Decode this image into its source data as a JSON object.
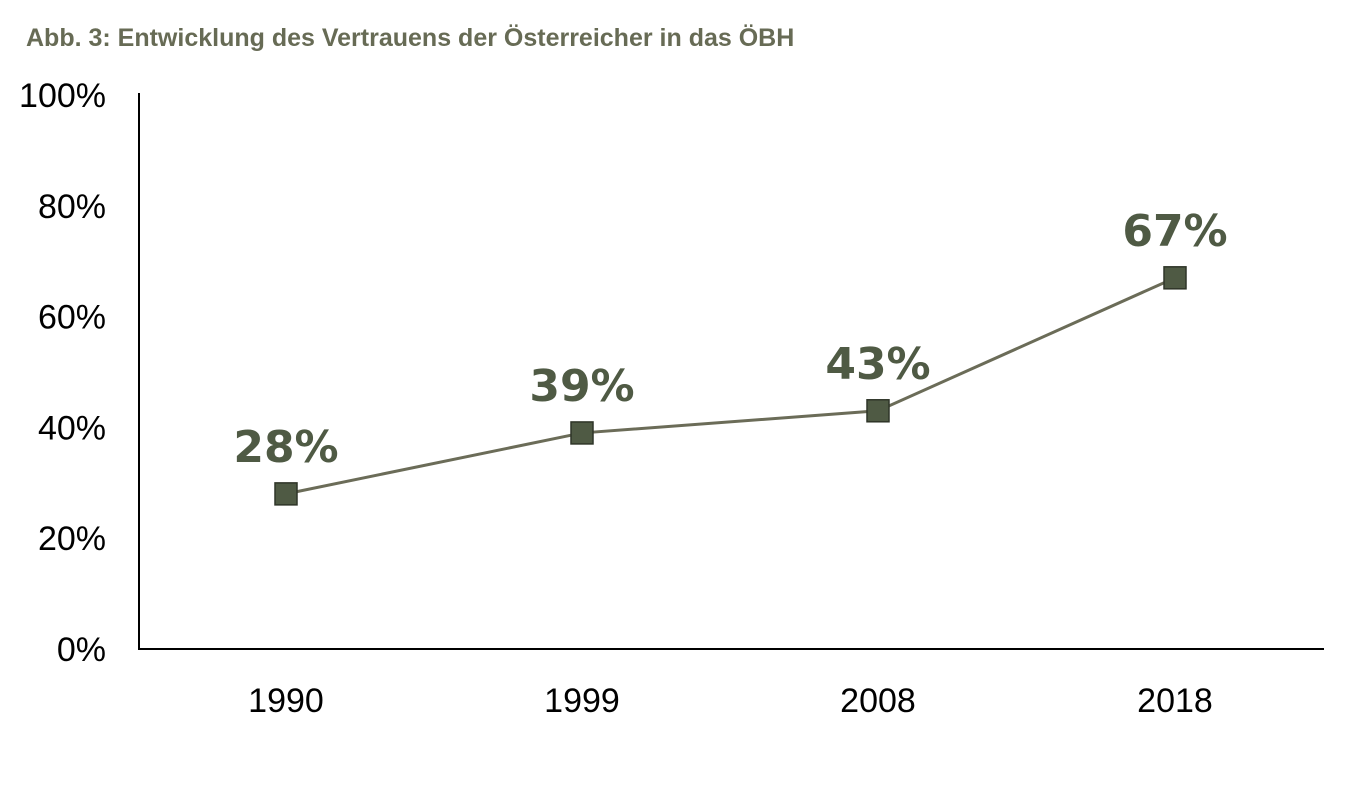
{
  "chart_data": {
    "type": "line",
    "title": "Abb. 3: Entwicklung des Vertrauens der Österreicher in das ÖBH",
    "categories": [
      "1990",
      "1999",
      "2008",
      "2018"
    ],
    "series": [
      {
        "values": [
          28,
          39,
          43,
          67
        ],
        "data_labels": [
          "28%",
          "39%",
          "43%",
          "67%"
        ]
      }
    ],
    "ylim": [
      0,
      100
    ],
    "y_ticks": [
      0,
      20,
      40,
      60,
      80,
      100
    ],
    "y_tick_labels": [
      "0%",
      "20%",
      "40%",
      "60%",
      "80%",
      "100%"
    ],
    "xlabel": "",
    "ylabel": "",
    "grid": false,
    "legend": "none",
    "colors": {
      "title": "#676b55",
      "line": "#6b6c58",
      "marker": "#4f5a44",
      "marker_stroke": "#2f3528",
      "data_label": "#4f5a44",
      "axis": "#000000"
    }
  }
}
